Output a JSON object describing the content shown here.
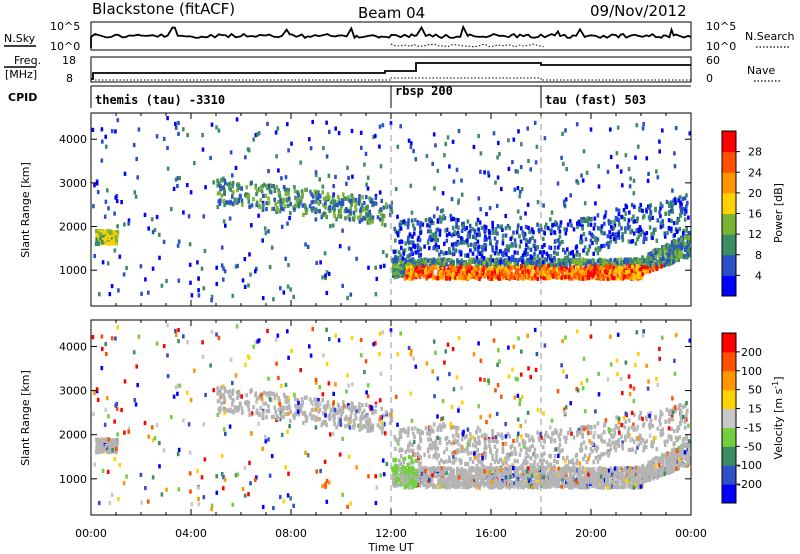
{
  "header": {
    "radar": "Blackstone (fitACF)",
    "beam": "Beam 04",
    "date": "09/Nov/2012"
  },
  "noise_panel": {
    "left_label": "N.Sky",
    "right_label": "N.Search",
    "left_ticks": [
      "10^5",
      "10^0"
    ],
    "right_ticks": [
      "10^5",
      "10^0"
    ]
  },
  "freq_panel": {
    "left_label_top": "Freq.",
    "left_label_bottom": "[MHz]",
    "right_label": "Nave",
    "left_ticks": [
      "18",
      "8"
    ],
    "right_ticks": [
      "60",
      "0"
    ]
  },
  "cpid_panel": {
    "label": "CPID",
    "modes": [
      {
        "name": "themis (tau) -3310",
        "start_hour": 0.0
      },
      {
        "name": "rbsp 200",
        "start_hour": 12.0
      },
      {
        "name": "tau (fast) 503",
        "start_hour": 18.0
      }
    ]
  },
  "x_axis": {
    "title": "Time UT",
    "ticks": [
      "00:00",
      "04:00",
      "08:00",
      "12:00",
      "16:00",
      "20:00",
      "00:00"
    ]
  },
  "colors": {
    "ground_scatter": "#b4b4b4",
    "power_scale": [
      "#0000ff",
      "#2850c8",
      "#3c8c64",
      "#7ab432",
      "#ffd200",
      "#ff9600",
      "#ff5000",
      "#ff0000"
    ],
    "velocity_scale": [
      "#0000ff",
      "#3050c8",
      "#3c8c64",
      "#70d040",
      "#c8c8c8",
      "#ffd200",
      "#ff9600",
      "#ff5000",
      "#ff0000"
    ]
  },
  "chart_data": [
    {
      "type": "heatmap",
      "title": "Power",
      "xlabel": "Time UT",
      "ylabel": "Slant Range [km]",
      "xlim_hours": [
        0,
        24
      ],
      "ylim": [
        180,
        4600
      ],
      "yticks": [
        "4000",
        "3000",
        "2000",
        "1000"
      ],
      "colorbar": {
        "label": "Power [dB]",
        "range": [
          0,
          32
        ],
        "ticks": [
          "28",
          "24",
          "20",
          "16",
          "12",
          "8",
          "4"
        ]
      },
      "features": [
        {
          "description": "patch",
          "t_start": 0.2,
          "t_end": 1.1,
          "range_min": 1650,
          "range_max": 1900
        },
        {
          "description": "main echo band",
          "t_start": 12.0,
          "t_end": 23.9,
          "range_min": 700,
          "range_max": 1300
        }
      ]
    },
    {
      "type": "heatmap",
      "title": "Velocity",
      "xlabel": "Time UT",
      "ylabel": "Slant Range [km]",
      "xlim_hours": [
        0,
        24
      ],
      "ylim": [
        180,
        4600
      ],
      "yticks": [
        "4000",
        "3000",
        "2000",
        "1000"
      ],
      "colorbar": {
        "label": "Velocity [m s-1]",
        "range": [
          -250,
          250
        ],
        "ticks": [
          "200",
          "100",
          "50",
          "15",
          "-15",
          "-50",
          "-100",
          "-200"
        ]
      }
    }
  ]
}
